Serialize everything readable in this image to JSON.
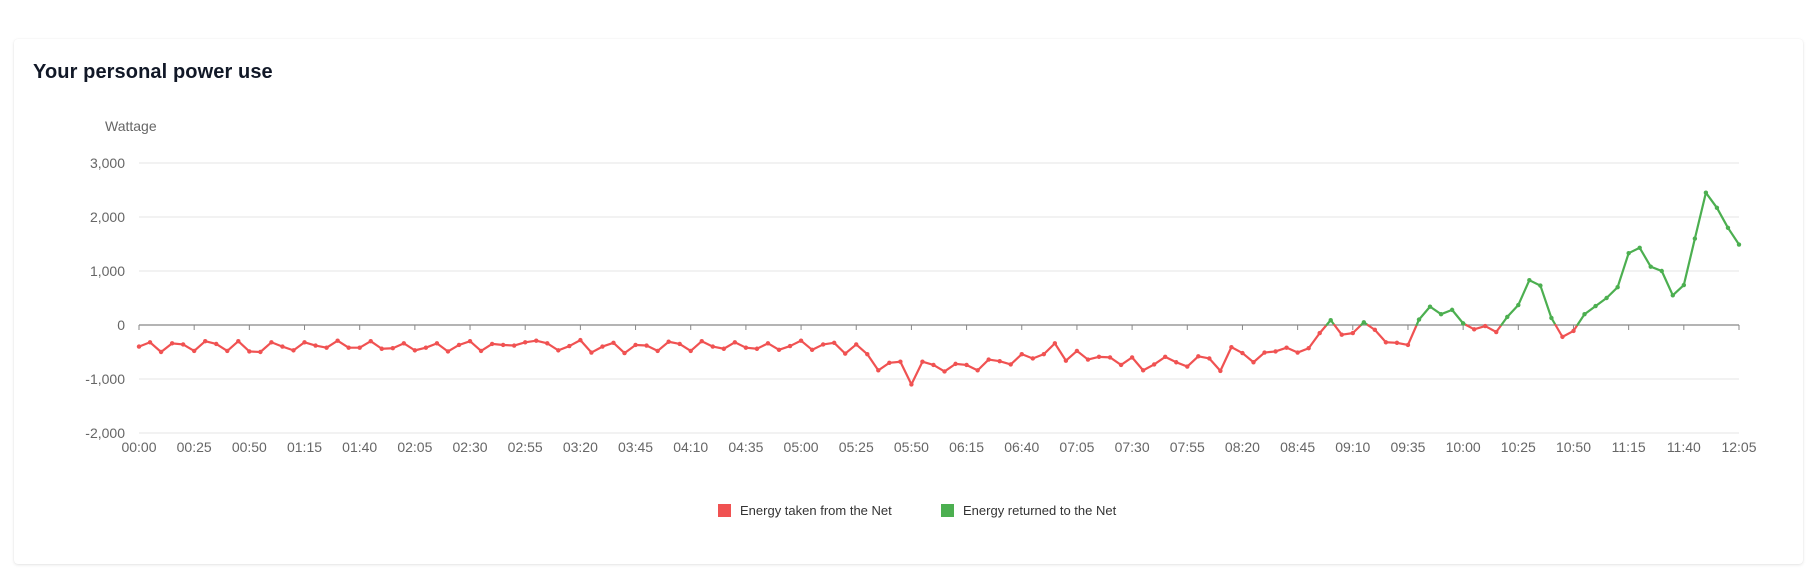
{
  "card": {
    "title": "Your personal power use"
  },
  "chart_data": {
    "type": "line",
    "ylabel": "Wattage",
    "xlabel": "",
    "ylim": [
      -2000,
      3000
    ],
    "yticks": [
      3000,
      2000,
      1000,
      0,
      -1000,
      -2000
    ],
    "ytick_labels": [
      "3,000",
      "2,000",
      "1,000",
      "0",
      "-1,000",
      "-2,000"
    ],
    "xtick_labels": [
      "00:00",
      "00:25",
      "00:50",
      "01:15",
      "01:40",
      "02:05",
      "02:30",
      "02:55",
      "03:20",
      "03:45",
      "04:10",
      "04:35",
      "05:00",
      "05:25",
      "05:50",
      "06:15",
      "06:40",
      "07:05",
      "07:30",
      "07:55",
      "08:20",
      "08:45",
      "09:10",
      "09:35",
      "10:00",
      "10:25",
      "10:50",
      "11:15",
      "11:40",
      "12:05"
    ],
    "interval_minutes": 5,
    "grid": true,
    "legend_position": "bottom",
    "colors": {
      "negative": "#f05252",
      "positive": "#4caf50",
      "grid": "#e6e6e6",
      "axis": "#888888"
    },
    "series": [
      {
        "name": "Energy taken from the Net",
        "color": "#f05252"
      },
      {
        "name": "Energy returned to the Net",
        "color": "#4caf50"
      }
    ],
    "values": [
      -400,
      -320,
      -500,
      -340,
      -360,
      -480,
      -300,
      -350,
      -480,
      -300,
      -490,
      -500,
      -320,
      -400,
      -470,
      -320,
      -380,
      -420,
      -290,
      -420,
      -420,
      -300,
      -440,
      -430,
      -340,
      -470,
      -420,
      -340,
      -490,
      -370,
      -300,
      -480,
      -350,
      -370,
      -380,
      -320,
      -290,
      -340,
      -470,
      -390,
      -280,
      -510,
      -400,
      -330,
      -520,
      -370,
      -380,
      -480,
      -310,
      -350,
      -480,
      -300,
      -400,
      -440,
      -320,
      -420,
      -440,
      -340,
      -460,
      -390,
      -290,
      -460,
      -360,
      -330,
      -530,
      -360,
      -540,
      -840,
      -700,
      -680,
      -1100,
      -680,
      -740,
      -860,
      -720,
      -740,
      -840,
      -640,
      -670,
      -730,
      -540,
      -620,
      -540,
      -340,
      -660,
      -480,
      -640,
      -590,
      -600,
      -740,
      -600,
      -840,
      -730,
      -590,
      -690,
      -770,
      -580,
      -620,
      -850,
      -410,
      -520,
      -690,
      -510,
      -490,
      -420,
      -510,
      -430,
      -150,
      90,
      -180,
      -150,
      50,
      -90,
      -320,
      -330,
      -370,
      100,
      340,
      200,
      280,
      30,
      -80,
      -20,
      -130,
      150,
      370,
      830,
      730,
      130,
      -220,
      -110,
      200,
      350,
      500,
      700,
      1330,
      1430,
      1080,
      1000,
      550,
      740,
      1600,
      2450,
      2170,
      1800,
      1490
    ]
  }
}
